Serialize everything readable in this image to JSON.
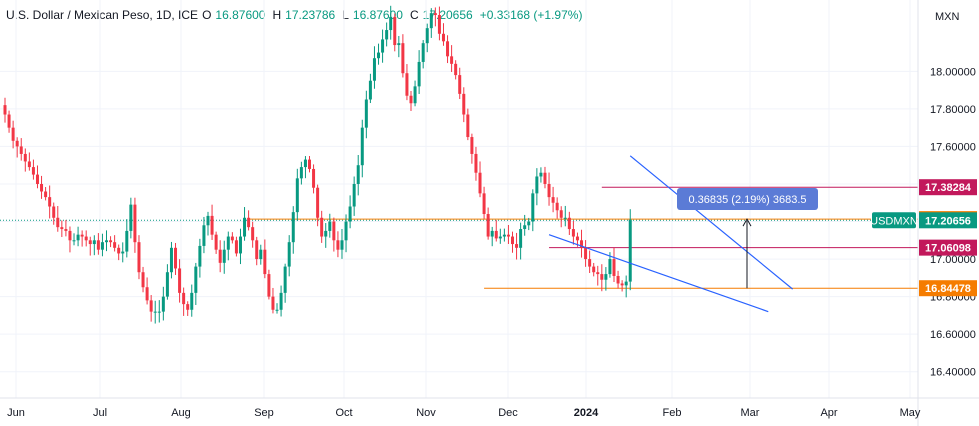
{
  "header": {
    "symbol": "U.S. Dollar / Mexican Peso, 1D, ICE",
    "open_key": "O",
    "open": "16.87600",
    "high_key": "H",
    "high": "17.23786",
    "low_key": "L",
    "low": "16.87600",
    "close_key": "C",
    "close": "17.20656",
    "change": "+0.33168 (+1.97%)"
  },
  "colors": {
    "up": "#089981",
    "down": "#f23645",
    "trend": "#2962ff",
    "orange": "#f57c00",
    "pink": "#c2185b"
  },
  "chart_data": {
    "type": "candlestick",
    "symbol": "USDMXN",
    "currency": "MXN",
    "ylim": [
      16.26,
      18.38
    ],
    "y_ticks": [
      {
        "value": 16.4,
        "label": "16.40000"
      },
      {
        "value": 16.6,
        "label": "16.60000"
      },
      {
        "value": 16.8,
        "label": "16.80000"
      },
      {
        "value": 17.0,
        "label": "17.00000"
      },
      {
        "value": 17.2,
        "label": "17.20000"
      },
      {
        "value": 17.4,
        "label": "17.40000"
      },
      {
        "value": 17.6,
        "label": "17.60000"
      },
      {
        "value": 17.8,
        "label": "17.80000"
      },
      {
        "value": 18.0,
        "label": "18.00000"
      }
    ],
    "x_ticks": [
      "Jun",
      "Jul",
      "Aug",
      "Sep",
      "Oct",
      "Nov",
      "Dec",
      "2024",
      "Feb",
      "Mar",
      "Apr",
      "May"
    ],
    "price_tags": [
      {
        "value": "17.38284",
        "color": "pink"
      },
      {
        "value": "17.21277",
        "color": "orange"
      },
      {
        "value": "17.06098",
        "color": "pink"
      },
      {
        "value": "16.84478",
        "color": "orange"
      }
    ],
    "current_price": {
      "symbol": "USDMXN",
      "value": "17.20656"
    },
    "measure": {
      "label": "0.36835 (2.19%) 3683.5"
    },
    "levels": [
      {
        "value": 17.38284,
        "color": "pink",
        "from_bar": 147
      },
      {
        "value": 17.21277,
        "color": "orange",
        "from_bar": 60
      },
      {
        "value": 17.06098,
        "color": "pink",
        "from_bar": 134
      },
      {
        "value": 16.84478,
        "color": "orange",
        "from_bar": 118
      }
    ],
    "trendlines": [
      {
        "from": [
          154,
          17.55
        ],
        "to": [
          194,
          16.84
        ]
      },
      {
        "from": [
          134,
          17.13
        ],
        "to": [
          188,
          16.72
        ]
      }
    ],
    "closes": [
      17.77,
      17.7,
      17.63,
      17.6,
      17.56,
      17.52,
      17.49,
      17.45,
      17.4,
      17.36,
      17.33,
      17.28,
      17.22,
      17.17,
      17.16,
      17.15,
      17.1,
      17.1,
      17.13,
      17.12,
      17.1,
      17.08,
      17.1,
      17.05,
      17.09,
      17.1,
      17.09,
      17.06,
      17.03,
      17.04,
      17.15,
      17.29,
      17.09,
      16.93,
      16.85,
      16.78,
      16.72,
      16.72,
      16.72,
      16.8,
      16.93,
      17.06,
      16.95,
      16.82,
      16.76,
      16.73,
      16.82,
      16.96,
      17.07,
      17.18,
      17.23,
      17.13,
      17.05,
      16.98,
      17.05,
      17.12,
      17.1,
      17.03,
      17.12,
      17.22,
      17.17,
      17.1,
      17.0,
      17.05,
      16.92,
      16.8,
      16.73,
      16.73,
      16.82,
      16.96,
      17.09,
      17.25,
      17.43,
      17.49,
      17.53,
      17.48,
      17.38,
      17.22,
      17.12,
      17.15,
      17.2,
      17.1,
      17.05,
      17.1,
      17.2,
      17.28,
      17.4,
      17.5,
      17.7,
      17.85,
      17.95,
      18.07,
      18.1,
      18.17,
      18.22,
      18.29,
      18.14,
      18.15,
      17.99,
      17.87,
      17.83,
      17.92,
      18.05,
      18.15,
      18.23,
      18.31,
      18.3,
      18.2,
      18.16,
      18.08,
      18.04,
      17.98,
      17.88,
      17.77,
      17.65,
      17.56,
      17.46,
      17.35,
      17.24,
      17.12,
      17.15,
      17.11,
      17.12,
      17.13,
      17.12,
      17.08,
      17.06,
      17.16,
      17.18,
      17.2,
      17.35,
      17.44,
      17.46,
      17.4,
      17.33,
      17.3,
      17.26,
      17.22,
      17.22,
      17.16,
      17.12,
      17.1,
      17.06,
      17.0,
      16.96,
      16.93,
      16.92,
      16.89,
      16.92,
      17.0,
      16.91,
      16.87,
      16.86,
      16.88,
      17.21
    ]
  }
}
